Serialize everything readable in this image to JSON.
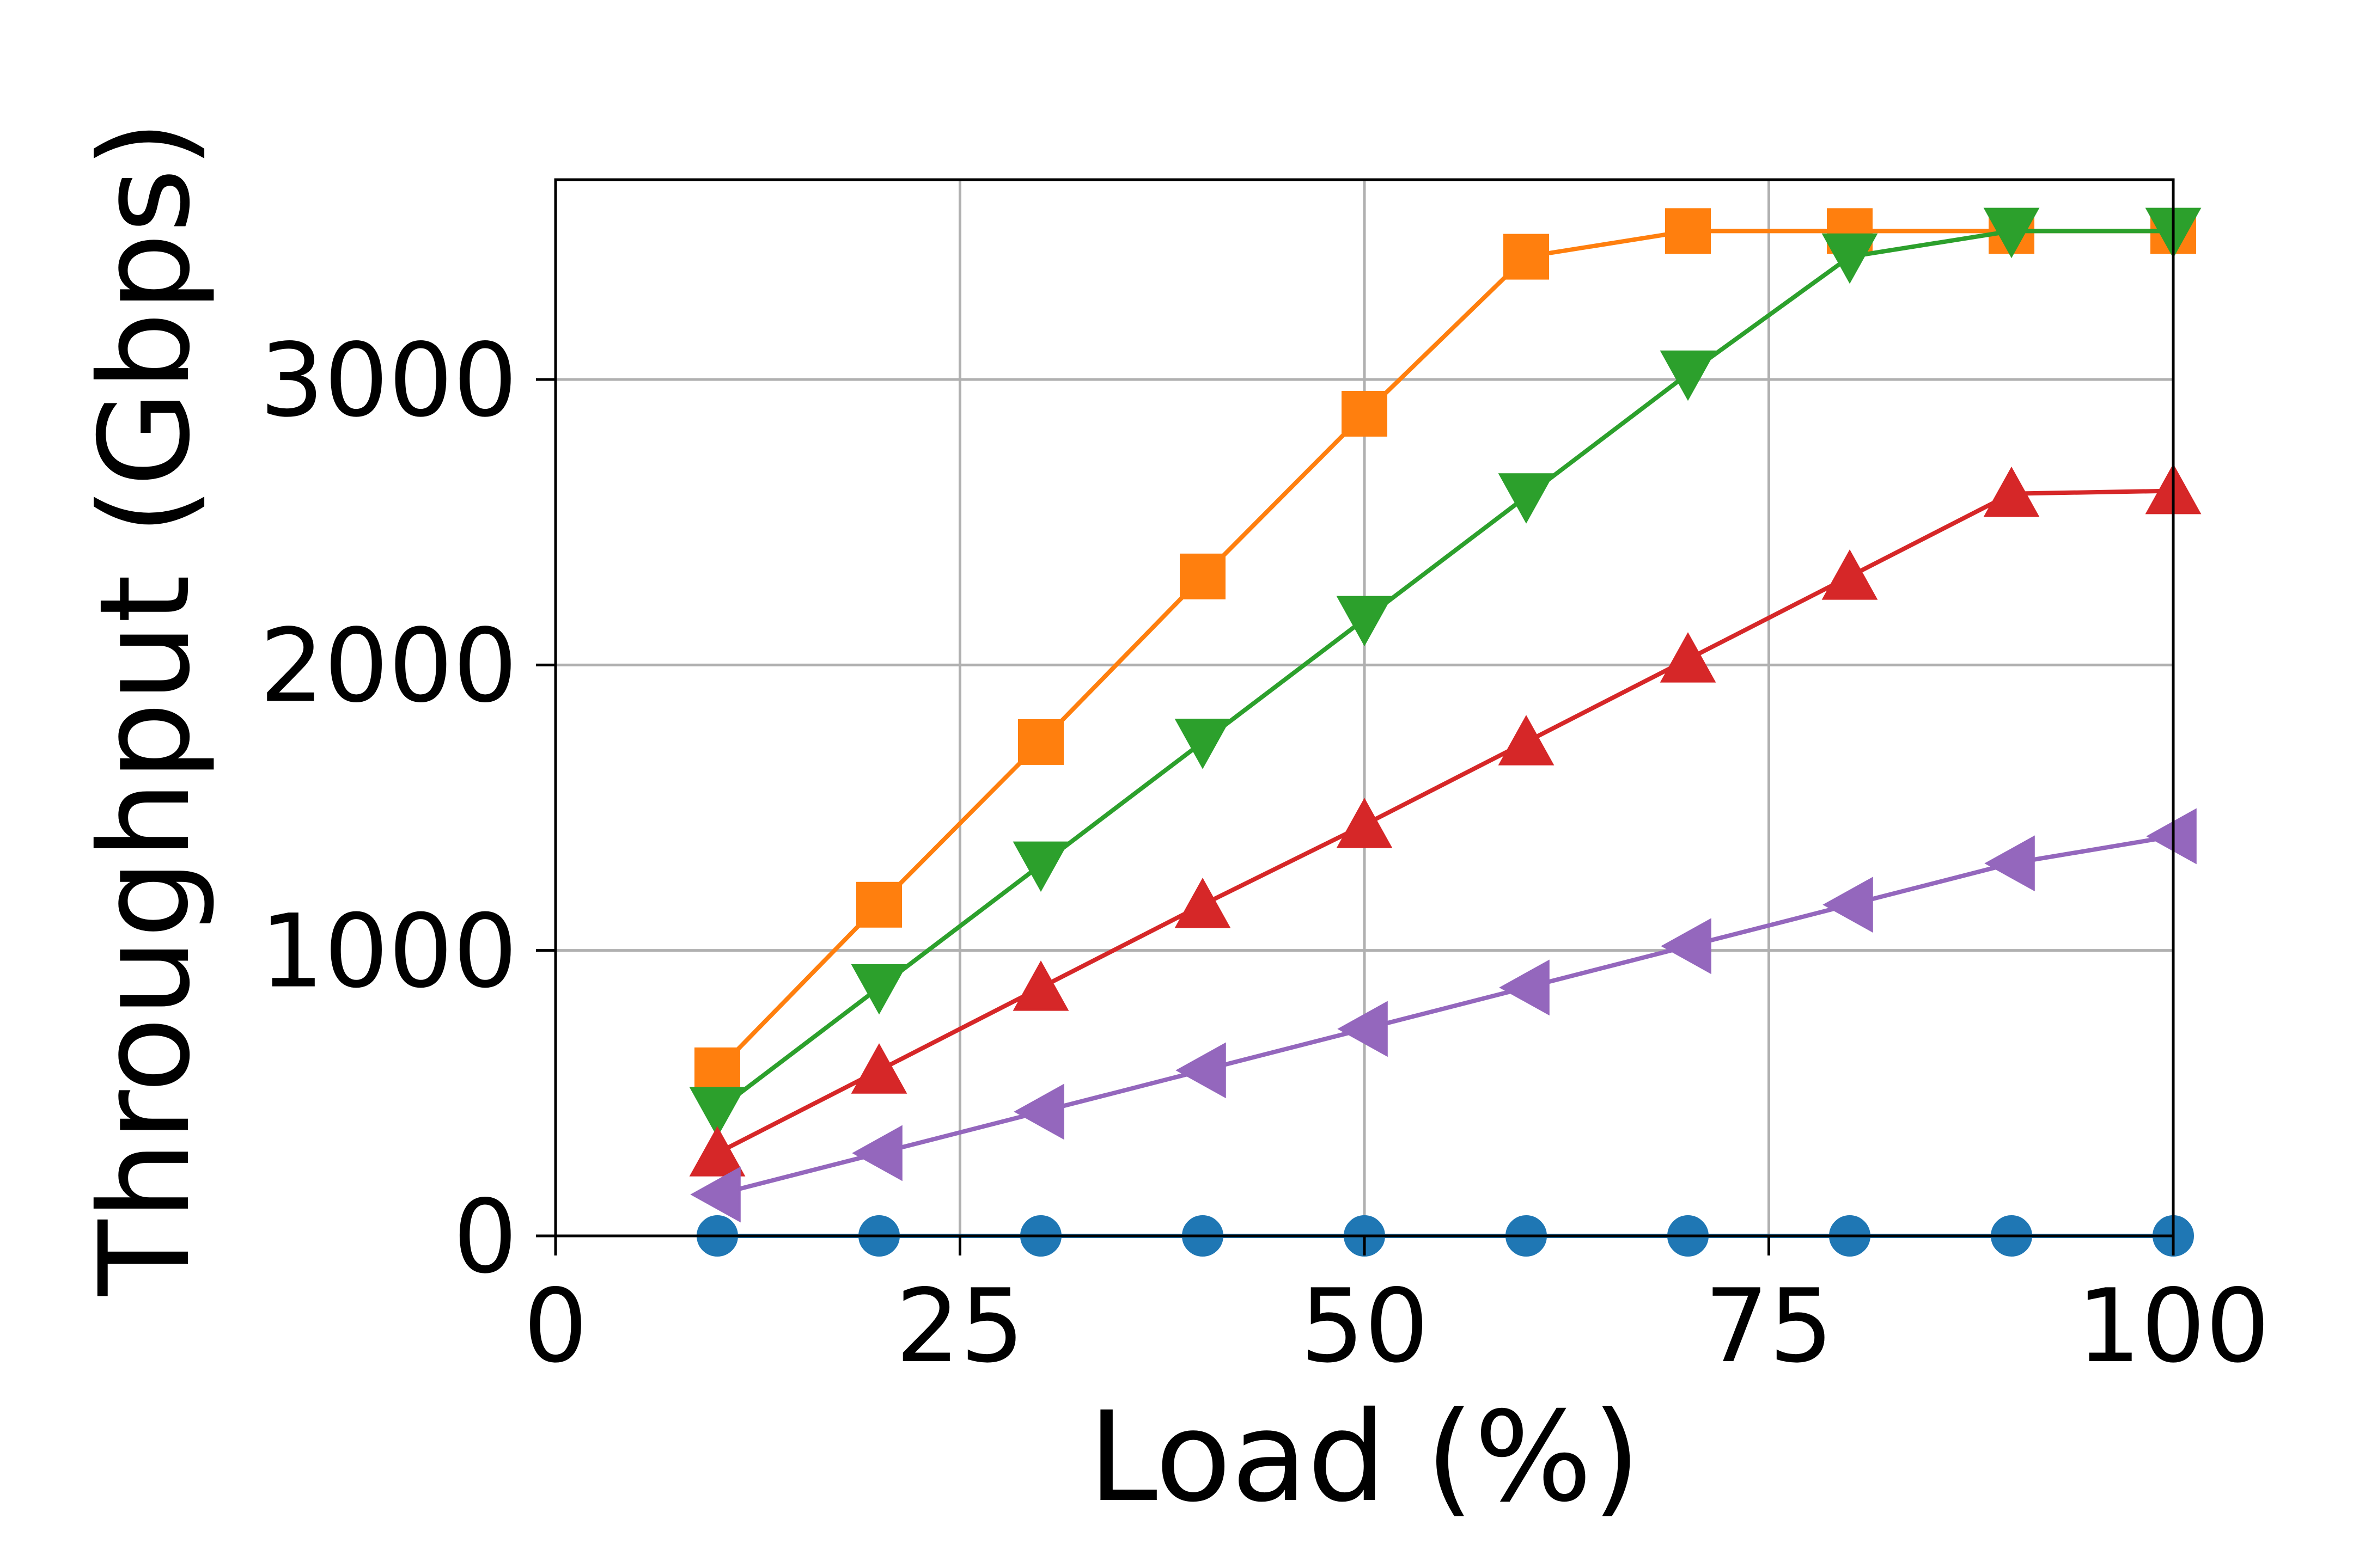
{
  "chart_data": {
    "type": "line",
    "title": "",
    "xlabel": "Load (%)",
    "ylabel": "Throughput (Gbps)",
    "xlim": [
      0,
      100
    ],
    "ylim": [
      0,
      3700
    ],
    "xticks": [
      0,
      25,
      50,
      75,
      100
    ],
    "yticks": [
      0,
      1000,
      2000,
      3000
    ],
    "grid": true,
    "legend": "none",
    "x": [
      10,
      20,
      30,
      40,
      50,
      60,
      70,
      80,
      90,
      100
    ],
    "series": [
      {
        "marker": "circle",
        "color": "#1f77b4",
        "values": [
          0,
          0,
          0,
          0,
          0,
          0,
          0,
          0,
          0,
          0
        ]
      },
      {
        "marker": "square",
        "color": "#ff7f0e",
        "values": [
          580,
          1160,
          1730,
          2310,
          2880,
          3430,
          3520,
          3520,
          3520,
          3520
        ]
      },
      {
        "marker": "triangle-down",
        "color": "#2ca02c",
        "values": [
          440,
          870,
          1300,
          1730,
          2160,
          2590,
          3020,
          3430,
          3520,
          3520
        ]
      },
      {
        "marker": "triangle-up",
        "color": "#d62728",
        "values": [
          290,
          580,
          870,
          1160,
          1440,
          1730,
          2020,
          2310,
          2600,
          2610
        ]
      },
      {
        "marker": "triangle-left",
        "color": "#9467bd",
        "values": [
          145,
          290,
          435,
          580,
          725,
          870,
          1015,
          1160,
          1305,
          1400
        ]
      }
    ]
  }
}
